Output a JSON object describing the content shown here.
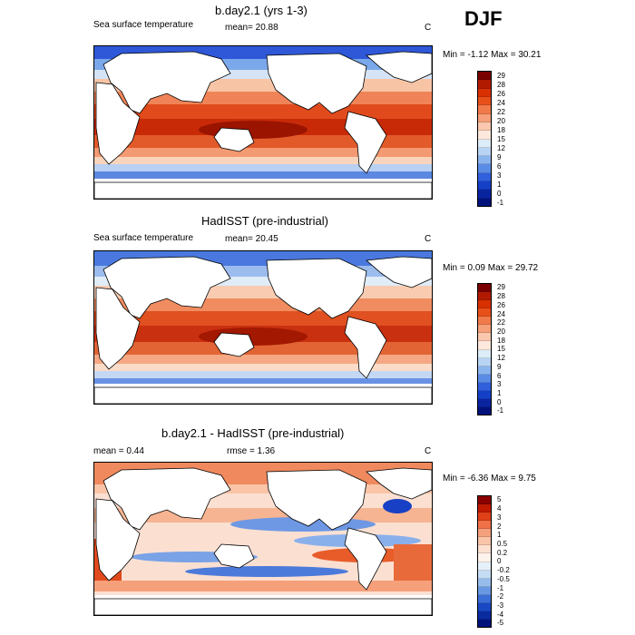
{
  "season": "DJF",
  "panels": [
    {
      "title": "b.day2.1 (yrs 1-3)",
      "left_label": "Sea surface temperature",
      "mean_label": "mean=  20.88",
      "unit": "C",
      "minmax": "Min =  -1.12 Max =  30.21",
      "colorbar": {
        "labels": [
          "29",
          "28",
          "26",
          "24",
          "22",
          "20",
          "18",
          "15",
          "12",
          "9",
          "6",
          "3",
          "1",
          "0",
          "-1"
        ],
        "colors": [
          "#7a0000",
          "#b21a00",
          "#d83000",
          "#e8501a",
          "#f07a4a",
          "#f5a07a",
          "#fac8ae",
          "#fce8dc",
          "#dcecf8",
          "#b8d4f4",
          "#8ab4ee",
          "#5a8ce6",
          "#3060dc",
          "#1440c8",
          "#0a24a0",
          "#00127a"
        ]
      }
    },
    {
      "title": "HadISST (pre-industrial)",
      "left_label": "Sea surface temperature",
      "mean_label": "mean=  20.45",
      "unit": "C",
      "minmax": "Min =  0.09 Max =  29.72",
      "colorbar": {
        "labels": [
          "29",
          "28",
          "26",
          "24",
          "22",
          "20",
          "18",
          "15",
          "12",
          "9",
          "6",
          "3",
          "1",
          "0",
          "-1"
        ],
        "colors": [
          "#7a0000",
          "#b21a00",
          "#d83000",
          "#e8501a",
          "#f07a4a",
          "#f5a07a",
          "#fac8ae",
          "#fce8dc",
          "#dcecf8",
          "#b8d4f4",
          "#8ab4ee",
          "#5a8ce6",
          "#3060dc",
          "#1440c8",
          "#0a24a0",
          "#00127a"
        ]
      }
    },
    {
      "title": "b.day2.1 - HadISST (pre-industrial)",
      "left_label": "mean =   0.44",
      "mean_label": "rmse =   1.36",
      "unit": "C",
      "minmax": "Min =  -6.36 Max =  9.75",
      "colorbar": {
        "labels": [
          "5",
          "4",
          "3",
          "2",
          "1",
          "0.5",
          "0.2",
          "0",
          "-0.2",
          "-0.5",
          "-1",
          "-2",
          "-3",
          "-4",
          "-5"
        ],
        "colors": [
          "#8a0000",
          "#c01a00",
          "#e04018",
          "#f07048",
          "#f5a07c",
          "#f9c4a8",
          "#fce0d0",
          "#fdf2ec",
          "#e6f0fa",
          "#c4dcf4",
          "#96bcec",
          "#6898e2",
          "#3c6ed8",
          "#1a48c4",
          "#0a2aa0",
          "#00127a"
        ]
      }
    }
  ]
}
